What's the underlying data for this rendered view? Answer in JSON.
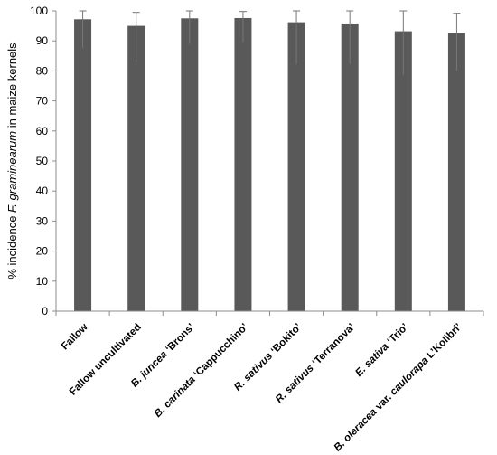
{
  "chart_data": {
    "type": "bar",
    "ylabel_parts": [
      {
        "text": "% incidence ",
        "italic": false
      },
      {
        "text": "F. graminearum",
        "italic": true
      },
      {
        "text": " in maize kernels",
        "italic": false
      }
    ],
    "xlabel": "",
    "ylim": [
      0,
      100
    ],
    "yticks": [
      0,
      10,
      20,
      30,
      40,
      50,
      60,
      70,
      80,
      90,
      100
    ],
    "grid": false,
    "bar_color": "#595959",
    "categories": [
      [
        {
          "text": "Fallow",
          "italic": false
        }
      ],
      [
        {
          "text": "Fallow uncultivated",
          "italic": false
        }
      ],
      [
        {
          "text": "B. juncea",
          "italic": true
        },
        {
          "text": "    ‘Brons’",
          "italic": false
        }
      ],
      [
        {
          "text": "B. carinata",
          "italic": true
        },
        {
          "text": "  ‘Cappucchino’",
          "italic": false
        }
      ],
      [
        {
          "text": "R. sativus",
          "italic": true
        },
        {
          "text": "  ‘Bokito’",
          "italic": false
        }
      ],
      [
        {
          "text": "R. sativus",
          "italic": true
        },
        {
          "text": "  ‘Terranova’",
          "italic": false
        }
      ],
      [
        {
          "text": "E. sativa",
          "italic": true
        },
        {
          "text": "   ‘Trio’",
          "italic": false
        }
      ],
      [
        {
          "text": "B. oleracea",
          "italic": true
        },
        {
          "text": " var. ",
          "italic": false
        },
        {
          "text": "caulorapa",
          "italic": true
        },
        {
          "text": " L’Kolibri’",
          "italic": false
        }
      ]
    ],
    "values": [
      97.2,
      95.0,
      97.5,
      97.6,
      96.2,
      95.8,
      93.2,
      92.6
    ],
    "error_upper": [
      2.8,
      4.5,
      2.5,
      2.2,
      3.8,
      4.2,
      6.8,
      6.6
    ],
    "error_lower": [
      9.5,
      12.0,
      8.5,
      8.0,
      14.0,
      13.5,
      14.5,
      12.5
    ]
  }
}
